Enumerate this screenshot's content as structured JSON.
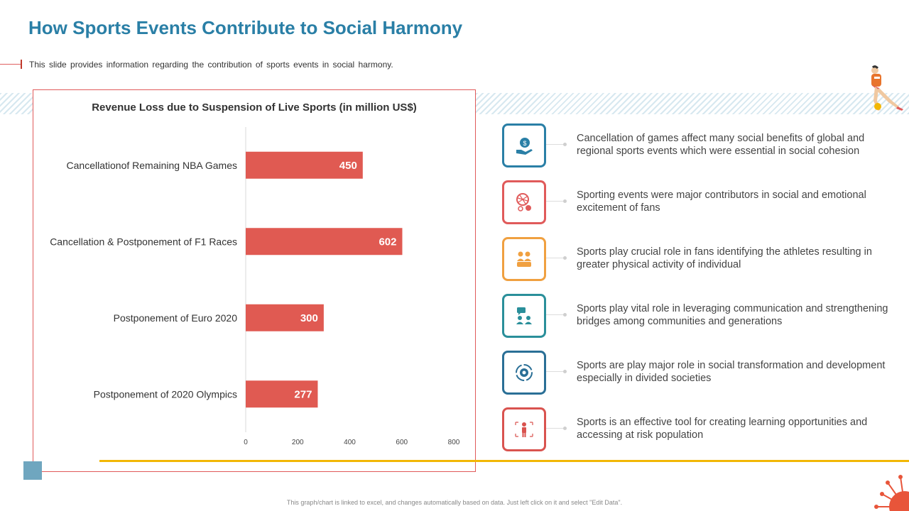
{
  "slide": {
    "title": "How Sports Events Contribute to Social Harmony",
    "subtitle": "This slide provides information regarding the contribution of sports events in social harmony.",
    "footer": "This graph/chart is linked to excel, and changes automatically based on data. Just left click on it and select \"Edit Data\"."
  },
  "chart_data": {
    "type": "bar",
    "orientation": "horizontal",
    "title": "Revenue Loss due to Suspension of Live Sports (in million US$)",
    "categories": [
      "Cancellationof Remaining NBA Games",
      "Cancellation & Postponement of F1 Races",
      "Postponement of Euro 2020",
      "Postponement of 2020 Olympics"
    ],
    "values": [
      450,
      602,
      300,
      277
    ],
    "value_labels": [
      "450",
      "602",
      "300",
      "277"
    ],
    "xlim": [
      0,
      800
    ],
    "xticks": [
      0,
      200,
      400,
      600,
      800
    ],
    "xtick_labels": [
      "0",
      "200",
      "400",
      "600",
      "800"
    ],
    "bar_color": "#e05a52",
    "grid": false,
    "legend": "none"
  },
  "items": [
    {
      "text": "Cancellation of games affect many social benefits of global and regional sports events which were essential in social cohesion",
      "color": "#2a7fa6",
      "icon": "money-hand-icon"
    },
    {
      "text": "Sporting events were major contributors in social and emotional excitement of fans",
      "color": "#e05a5a",
      "icon": "sports-balls-icon"
    },
    {
      "text": "Sports play crucial role in fans identifying the athletes resulting in greater physical activity of individual",
      "color": "#f0a040",
      "icon": "people-group-icon"
    },
    {
      "text": "Sports play vital role in leveraging communication and strengthening bridges among communities and generations",
      "color": "#2a8f9a",
      "icon": "chat-people-icon"
    },
    {
      "text": "Sports are play major role in social transformation and development especially in divided societies",
      "color": "#2a6f96",
      "icon": "gear-cycle-icon"
    },
    {
      "text": "Sports is an effective tool for creating learning opportunities and accessing at risk population",
      "color": "#d9534f",
      "icon": "person-arrows-icon"
    }
  ]
}
